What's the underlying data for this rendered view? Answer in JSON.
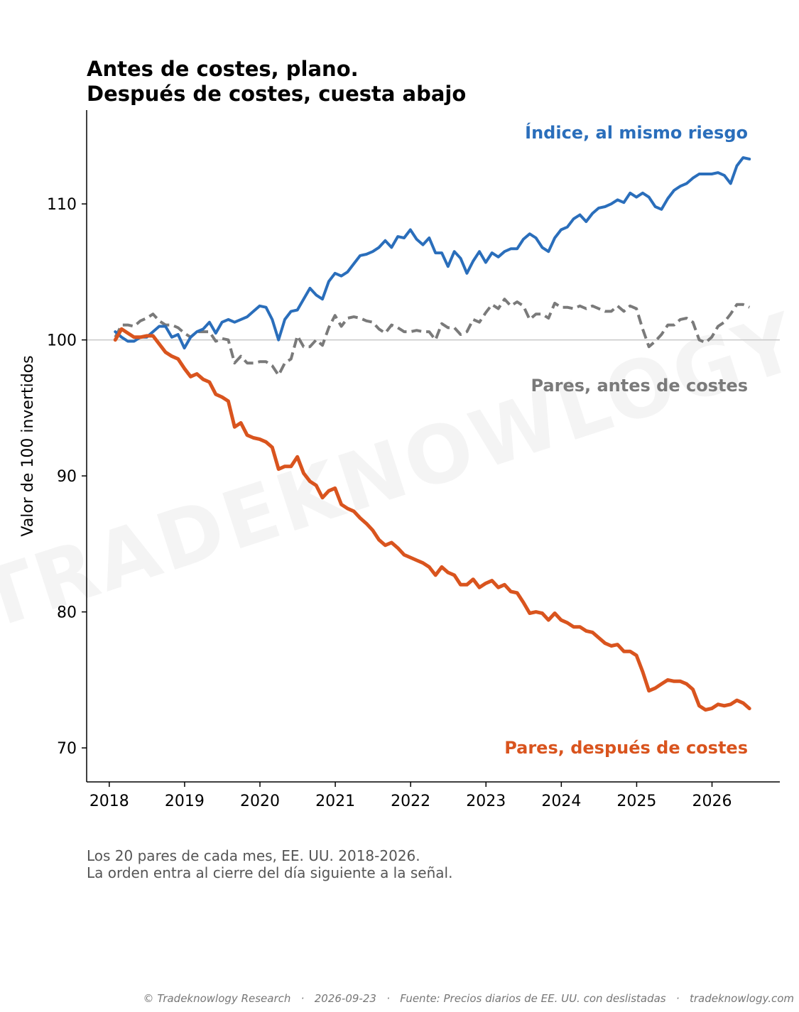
{
  "title_line1": "Antes de costes, plano.",
  "title_line2": "Después de costes, cuesta abajo",
  "notes": {
    "line1": "Los 20 pares de cada mes, EE. UU. 2018-2026.",
    "line2": "La orden entra al cierre del día siguiente a la señal."
  },
  "footer": "© Tradeknowlogy Research   ·   2026-09-23   ·   Fuente: Precios diarios de EE. UU. con deslistadas   ·   tradeknowlogy.com",
  "watermark": "TRADEKNOWLOGY",
  "chart_data": {
    "type": "line",
    "ylabel": "Valor de 100 invertidos",
    "xlabel": "",
    "xlim": [
      2017.7,
      2026.9
    ],
    "ylim": [
      67.5,
      116.9
    ],
    "xticks": [
      2018,
      2019,
      2020,
      2021,
      2022,
      2023,
      2024,
      2025,
      2026
    ],
    "yticks": [
      70,
      80,
      90,
      100,
      110
    ],
    "baseline": 100,
    "grid": false,
    "x_start": 2018.08,
    "x_step": 0.08333,
    "series": [
      {
        "name": "Índice, al mismo riesgo",
        "color": "#2a6ebb",
        "dash": "solid",
        "values": [
          100.6,
          100.2,
          99.9,
          99.9,
          100.2,
          100.2,
          100.6,
          101.0,
          101.0,
          100.2,
          100.4,
          99.4,
          100.2,
          100.6,
          100.8,
          101.3,
          100.5,
          101.3,
          101.5,
          101.3,
          101.5,
          101.7,
          102.1,
          102.5,
          102.4,
          101.5,
          100.0,
          101.5,
          102.1,
          102.2,
          103.0,
          103.8,
          103.3,
          103.0,
          104.3,
          104.9,
          104.7,
          105.0,
          105.6,
          106.2,
          106.3,
          106.5,
          106.8,
          107.3,
          106.8,
          107.6,
          107.5,
          108.1,
          107.4,
          107.0,
          107.5,
          106.4,
          106.4,
          105.4,
          106.5,
          106.0,
          104.9,
          105.8,
          106.5,
          105.7,
          106.4,
          106.1,
          106.5,
          106.7,
          106.7,
          107.4,
          107.8,
          107.5,
          106.8,
          106.5,
          107.5,
          108.1,
          108.3,
          108.9,
          109.2,
          108.7,
          109.3,
          109.7,
          109.8,
          110.0,
          110.3,
          110.1,
          110.8,
          110.5,
          110.8,
          110.5,
          109.8,
          109.6,
          110.4,
          111.0,
          111.3,
          111.5,
          111.9,
          112.2,
          112.2,
          112.2,
          112.3,
          112.1,
          111.5,
          112.8,
          113.4,
          113.3
        ]
      },
      {
        "name": "Pares, antes de costes",
        "color": "#7a7a7a",
        "dash": "dashed",
        "values": [
          100.2,
          101.1,
          101.1,
          101.0,
          101.4,
          101.6,
          101.9,
          101.4,
          101.1,
          101.1,
          100.9,
          100.5,
          100.2,
          100.6,
          100.6,
          100.6,
          99.9,
          100.1,
          100.0,
          98.3,
          98.8,
          98.3,
          98.3,
          98.4,
          98.4,
          98.1,
          97.4,
          98.3,
          98.6,
          100.3,
          99.5,
          99.5,
          100.0,
          99.6,
          100.9,
          101.8,
          101.0,
          101.6,
          101.7,
          101.6,
          101.4,
          101.3,
          100.8,
          100.5,
          101.1,
          100.9,
          100.6,
          100.6,
          100.7,
          100.6,
          100.6,
          100.0,
          101.2,
          100.9,
          100.9,
          100.4,
          100.6,
          101.5,
          101.3,
          102.0,
          102.6,
          102.3,
          103.0,
          102.5,
          102.8,
          102.5,
          101.5,
          101.9,
          101.9,
          101.6,
          102.7,
          102.4,
          102.4,
          102.3,
          102.5,
          102.3,
          102.5,
          102.3,
          102.1,
          102.1,
          102.5,
          102.1,
          102.5,
          102.3,
          100.8,
          99.5,
          99.9,
          100.4,
          101.1,
          101.1,
          101.5,
          101.6,
          101.3,
          100.0,
          99.8,
          100.2,
          101.0,
          101.3,
          101.9,
          102.6,
          102.6,
          102.4
        ]
      },
      {
        "name": "Pares, después de costes",
        "color": "#d9541e",
        "dash": "solid",
        "values": [
          100.0,
          100.8,
          100.5,
          100.2,
          100.2,
          100.3,
          100.3,
          99.7,
          99.1,
          98.8,
          98.6,
          97.9,
          97.3,
          97.5,
          97.1,
          96.9,
          96.0,
          95.8,
          95.5,
          93.6,
          93.9,
          93.0,
          92.8,
          92.7,
          92.5,
          92.1,
          90.5,
          90.7,
          90.7,
          91.4,
          90.2,
          89.6,
          89.3,
          88.4,
          88.9,
          89.1,
          87.9,
          87.6,
          87.4,
          86.9,
          86.5,
          86.0,
          85.3,
          84.9,
          85.1,
          84.7,
          84.2,
          84.0,
          83.8,
          83.6,
          83.3,
          82.7,
          83.3,
          82.9,
          82.7,
          82.0,
          82.0,
          82.4,
          81.8,
          82.1,
          82.3,
          81.8,
          82.0,
          81.5,
          81.4,
          80.7,
          79.9,
          80.0,
          79.9,
          79.4,
          79.9,
          79.4,
          79.2,
          78.9,
          78.9,
          78.6,
          78.5,
          78.1,
          77.7,
          77.5,
          77.6,
          77.1,
          77.1,
          76.8,
          75.6,
          74.2,
          74.4,
          74.7,
          75.0,
          74.9,
          74.9,
          74.7,
          74.3,
          73.1,
          72.8,
          72.9,
          73.2,
          73.1,
          73.2,
          73.5,
          73.3,
          72.9
        ]
      }
    ],
    "series_labels": {
      "indice": "Índice, al mismo riesgo",
      "antes": "Pares, antes de costes",
      "despues": "Pares, después de costes"
    }
  }
}
